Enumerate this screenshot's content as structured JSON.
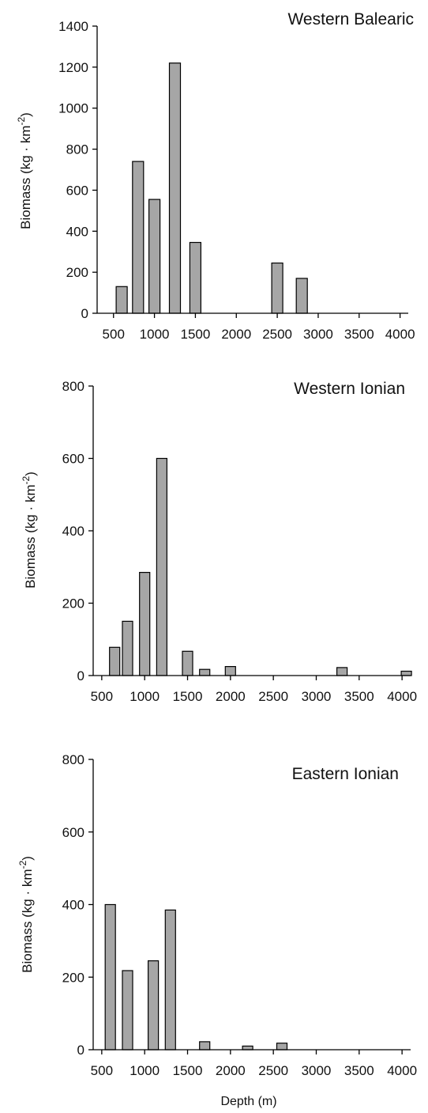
{
  "chart_data": [
    {
      "type": "bar",
      "title": "Western Balearic",
      "xlabel": "",
      "ylabel": "Biomass (kg · km⁻²)",
      "ylim": [
        0,
        1400
      ],
      "xlim": [
        300,
        4100
      ],
      "x_ticks": [
        "500",
        "1000",
        "1500",
        "2000",
        "2500",
        "3000",
        "3500",
        "4000"
      ],
      "y_ticks": [
        "0",
        "200",
        "400",
        "600",
        "800",
        "1000",
        "1200",
        "1400"
      ],
      "grid": false,
      "x": [
        600,
        800,
        1000,
        1250,
        1500,
        2500,
        2800
      ],
      "values": [
        130,
        740,
        555,
        1220,
        345,
        245,
        170
      ],
      "bar_color": "#a6a6a6"
    },
    {
      "type": "bar",
      "title": "Western Ionian",
      "xlabel": "",
      "ylabel": "Biomass (kg · km⁻²)",
      "ylim": [
        0,
        800
      ],
      "xlim": [
        400,
        4100
      ],
      "x_ticks": [
        "500",
        "1000",
        "1500",
        "2000",
        "2500",
        "3000",
        "3500",
        "4000"
      ],
      "y_ticks": [
        "0",
        "200",
        "400",
        "600",
        "800"
      ],
      "grid": false,
      "x": [
        650,
        800,
        1000,
        1200,
        1500,
        1700,
        2000,
        3300,
        4050
      ],
      "values": [
        78,
        150,
        285,
        600,
        67,
        17,
        25,
        22,
        12
      ],
      "bar_color": "#a6a6a6"
    },
    {
      "type": "bar",
      "title": "Eastern Ionian",
      "xlabel": "Depth (m)",
      "ylabel": "Biomass (kg · km⁻²)",
      "ylim": [
        0,
        800
      ],
      "xlim": [
        400,
        4100
      ],
      "x_ticks": [
        "500",
        "1000",
        "1500",
        "2000",
        "2500",
        "3000",
        "3500",
        "4000"
      ],
      "y_ticks": [
        "0",
        "200",
        "400",
        "600",
        "800"
      ],
      "grid": false,
      "x": [
        600,
        800,
        1100,
        1300,
        1700,
        2200,
        2600
      ],
      "values": [
        400,
        218,
        245,
        385,
        22,
        10,
        18
      ],
      "bar_color": "#a6a6a6"
    }
  ]
}
